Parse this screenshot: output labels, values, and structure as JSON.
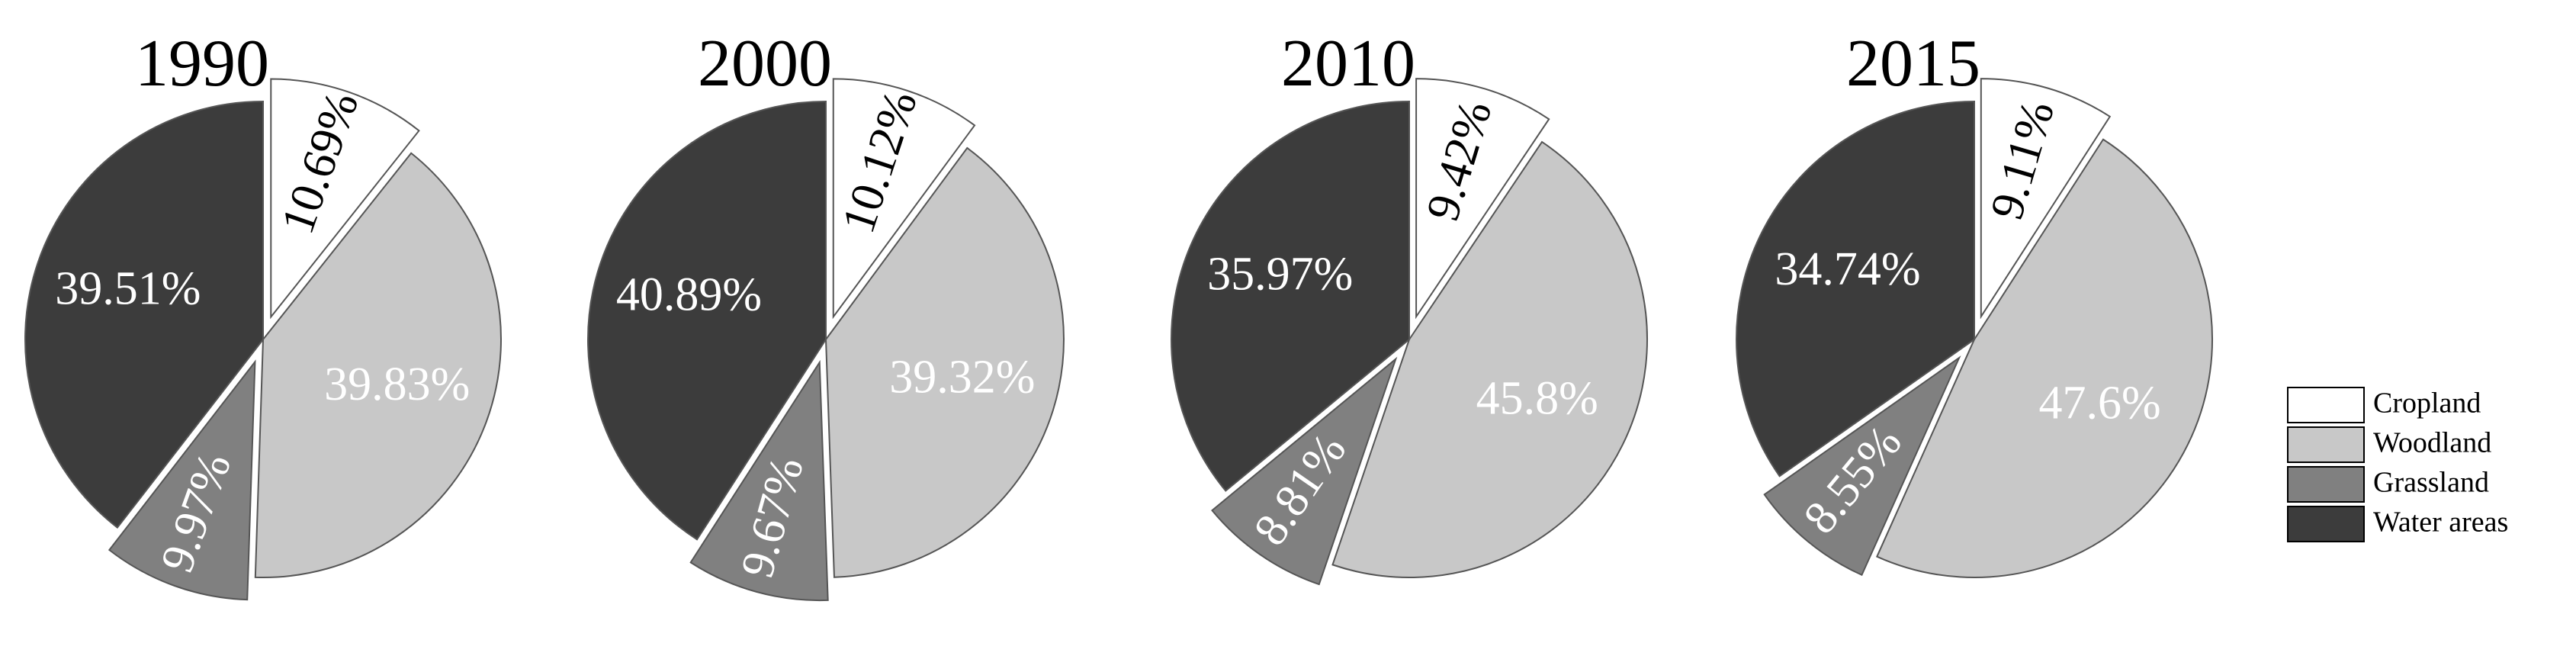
{
  "chart_data": [
    {
      "type": "pie",
      "title": "1990",
      "categories": [
        "Cropland",
        "Woodland",
        "Grassland",
        "Water areas"
      ],
      "values": [
        10.69,
        39.83,
        9.97,
        39.51
      ],
      "value_labels": [
        "10.69%",
        "39.83%",
        "9.97%",
        "39.51%"
      ],
      "colors": [
        "#ffffff",
        "#c8c8c8",
        "#808080",
        "#3c3c3c"
      ],
      "label_colors": [
        "#000000",
        "#ffffff",
        "#ffffff",
        "#ffffff"
      ],
      "explode": [
        true,
        false,
        true,
        false
      ]
    },
    {
      "type": "pie",
      "title": "2000",
      "categories": [
        "Cropland",
        "Woodland",
        "Grassland",
        "Water areas"
      ],
      "values": [
        10.12,
        39.32,
        9.67,
        40.89
      ],
      "value_labels": [
        "10.12%",
        "39.32%",
        "9.67%",
        "40.89%"
      ],
      "colors": [
        "#ffffff",
        "#c8c8c8",
        "#808080",
        "#3c3c3c"
      ],
      "label_colors": [
        "#000000",
        "#ffffff",
        "#ffffff",
        "#ffffff"
      ],
      "explode": [
        true,
        false,
        true,
        false
      ]
    },
    {
      "type": "pie",
      "title": "2010",
      "categories": [
        "Cropland",
        "Woodland",
        "Grassland",
        "Water areas"
      ],
      "values": [
        9.42,
        45.8,
        8.81,
        35.97
      ],
      "value_labels": [
        "9.42%",
        "45.8%",
        "8.81%",
        "35.97%"
      ],
      "colors": [
        "#ffffff",
        "#c8c8c8",
        "#808080",
        "#3c3c3c"
      ],
      "label_colors": [
        "#000000",
        "#ffffff",
        "#ffffff",
        "#ffffff"
      ],
      "explode": [
        true,
        false,
        true,
        false
      ]
    },
    {
      "type": "pie",
      "title": "2015",
      "categories": [
        "Cropland",
        "Woodland",
        "Grassland",
        "Water areas"
      ],
      "values": [
        9.11,
        47.6,
        8.55,
        34.74
      ],
      "value_labels": [
        "9.11%",
        "47.6%",
        "8.55%",
        "34.74%"
      ],
      "colors": [
        "#ffffff",
        "#c8c8c8",
        "#808080",
        "#3c3c3c"
      ],
      "label_colors": [
        "#000000",
        "#ffffff",
        "#ffffff",
        "#ffffff"
      ],
      "explode": [
        true,
        false,
        true,
        false
      ]
    }
  ]
}
